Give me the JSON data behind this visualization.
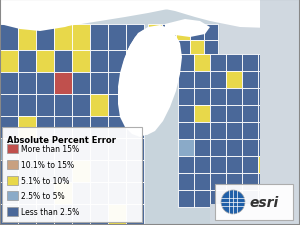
{
  "background_color": "#c8d4dc",
  "water_color": "#ffffff",
  "gray_area_color": "#d0d8e0",
  "county_dark_blue": "#4a6899",
  "county_light_blue": "#8aaac8",
  "county_yellow": "#e8d84a",
  "county_salmon": "#c8a080",
  "county_red": "#c0504d",
  "border_color": "#ffffff",
  "border_lw": 0.6,
  "legend": {
    "title": "Absolute Percent Error",
    "title_fontsize": 6.0,
    "item_fontsize": 5.5,
    "items": [
      {
        "label": "More than 15%",
        "color": "#c0504d"
      },
      {
        "label": "10.1% to 15%",
        "color": "#c8a080"
      },
      {
        "label": "5.1% to 10%",
        "color": "#e8d84a"
      },
      {
        "label": "2.5% to 5%",
        "color": "#8aaac8"
      },
      {
        "label": "Less than 2.5%",
        "color": "#4a6899"
      }
    ]
  }
}
